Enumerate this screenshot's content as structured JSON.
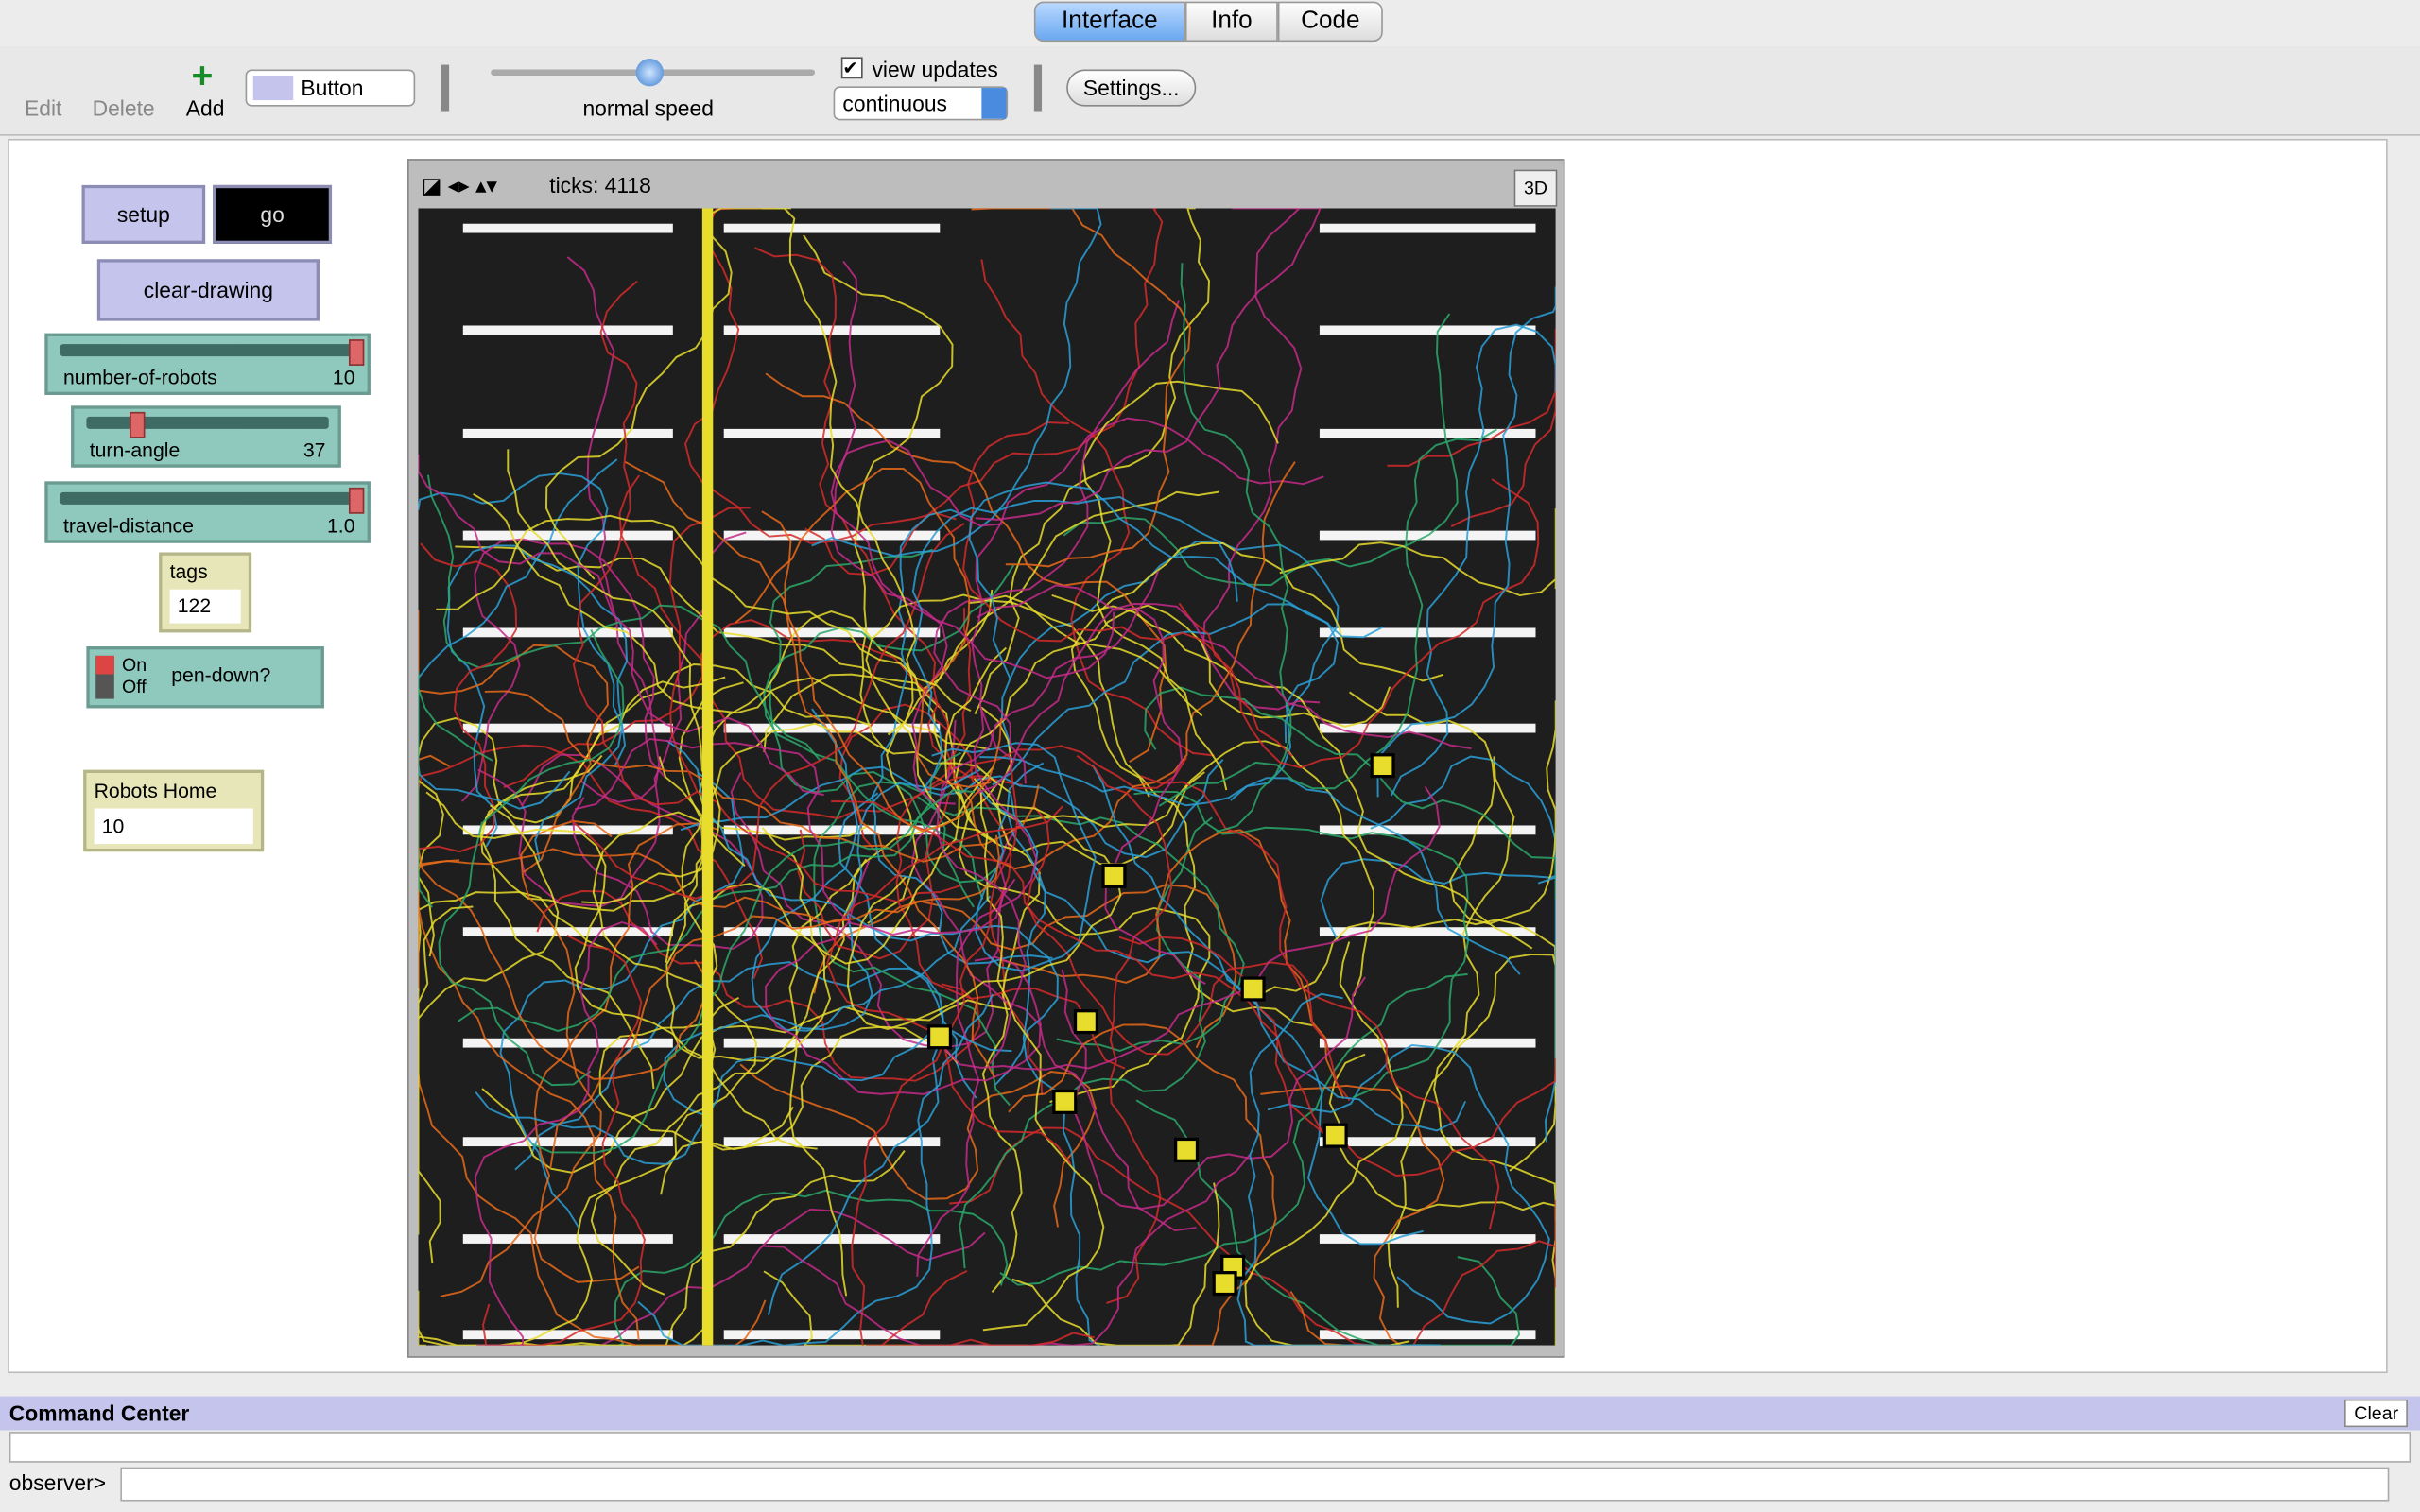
{
  "tabs": [
    "Interface",
    "Info",
    "Code"
  ],
  "toolbar": {
    "edit": "Edit",
    "delete": "Delete",
    "add": "Add",
    "widget_type": "Button",
    "speed_label": "normal speed",
    "view_updates": "view updates",
    "update_mode": "continuous",
    "settings": "Settings..."
  },
  "widgets": {
    "setup": "setup",
    "go": "go",
    "clear_drawing": "clear-drawing",
    "sliders": [
      {
        "name": "number-of-robots",
        "value": 10
      },
      {
        "name": "turn-angle",
        "value": 37
      },
      {
        "name": "travel-distance",
        "value": "1.0"
      }
    ],
    "monitors": [
      {
        "name": "tags",
        "value": 122
      },
      {
        "name": "Robots Home",
        "value": 10
      }
    ],
    "switch": {
      "on": "On",
      "off": "Off",
      "name": "pen-down?"
    }
  },
  "view": {
    "ticks": "ticks: 4118",
    "three_d": "3D"
  },
  "command_center": {
    "title": "Command Center",
    "clear": "Clear",
    "prompt": "observer>"
  }
}
